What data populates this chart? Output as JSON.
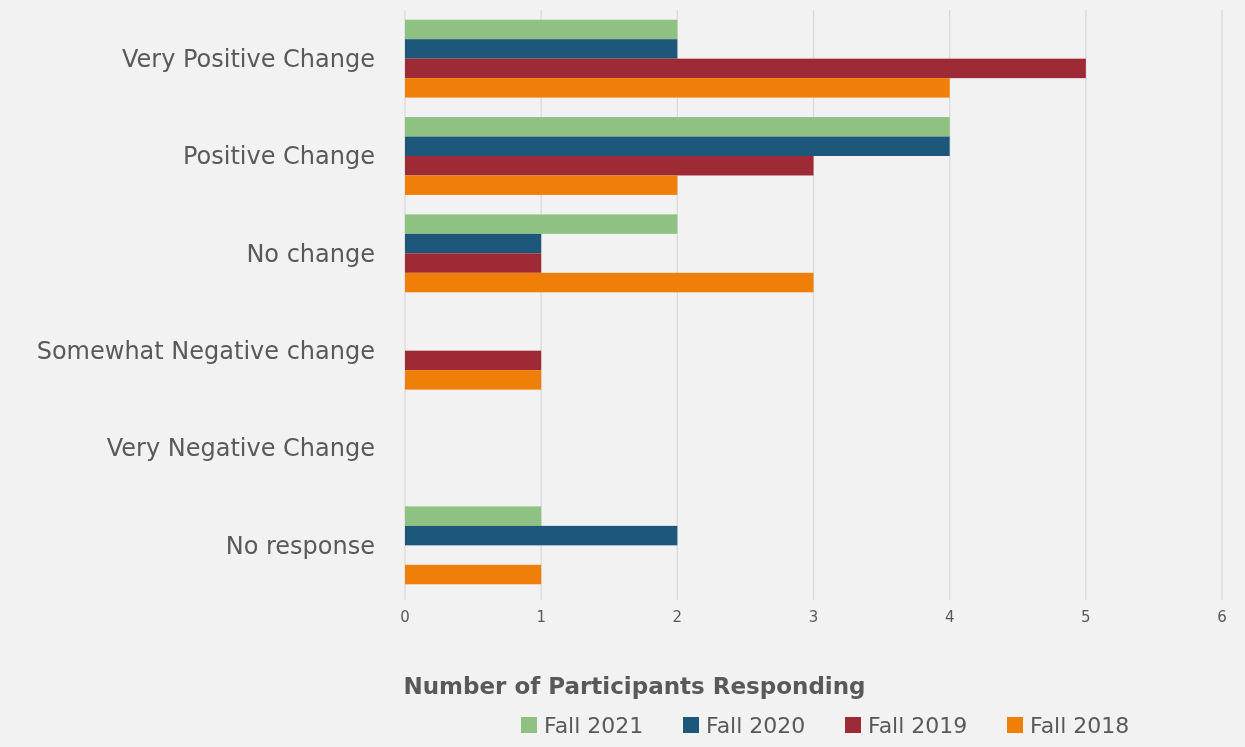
{
  "chart_data": {
    "type": "bar",
    "orientation": "horizontal",
    "xlabel": "Number of Participants Responding",
    "categories": [
      "Very Positive Change",
      "Positive Change",
      "No change",
      "Somewhat Negative change",
      "Very Negative Change",
      "No response"
    ],
    "series": [
      {
        "name": "Fall 2021",
        "color": "#8fc182",
        "values": [
          2,
          4,
          2,
          null,
          null,
          1
        ]
      },
      {
        "name": "Fall 2020",
        "color": "#1d587b",
        "values": [
          2,
          4,
          1,
          null,
          null,
          2
        ]
      },
      {
        "name": "Fall 2019",
        "color": "#9e2a36",
        "values": [
          5,
          3,
          1,
          1,
          null,
          null
        ]
      },
      {
        "name": "Fall 2018",
        "color": "#f07f09",
        "values": [
          4,
          2,
          3,
          1,
          null,
          1
        ]
      }
    ],
    "xlim": [
      0,
      6
    ],
    "xticks": [
      0,
      1,
      2,
      3,
      4,
      5,
      6
    ],
    "grid": "x",
    "legend": "bottom"
  }
}
